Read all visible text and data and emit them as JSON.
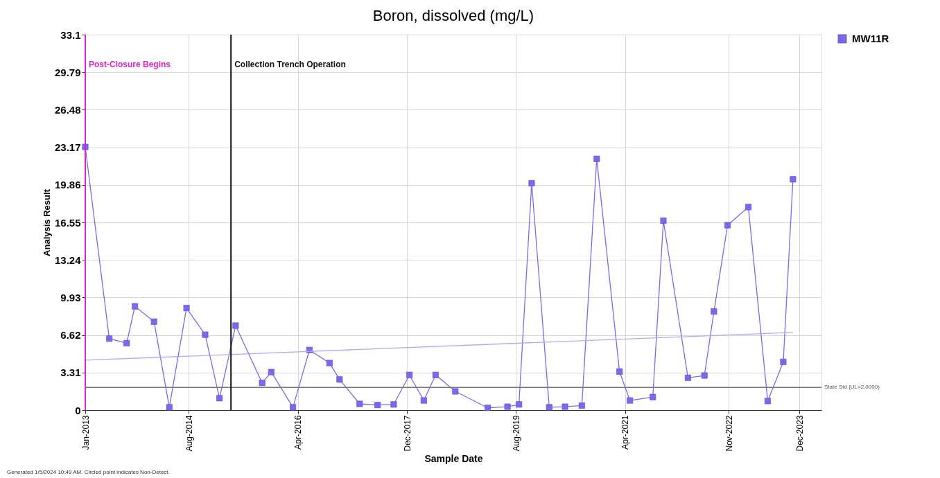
{
  "chart_data": {
    "type": "line",
    "title": "Boron, dissolved (mg/L)",
    "xlabel": "Sample Date",
    "ylabel": "Analysis Result",
    "series": [
      {
        "name": "MW11R",
        "color": "#7b68ee",
        "marker": "square",
        "x": [
          "2013-01-01",
          "2013-05-15",
          "2013-08-20",
          "2013-10-05",
          "2014-01-20",
          "2014-04-15",
          "2014-07-20",
          "2014-11-01",
          "2015-01-20",
          "2015-04-20",
          "2015-09-15",
          "2015-11-05",
          "2016-03-05",
          "2016-06-05",
          "2016-09-25",
          "2016-11-20",
          "2017-03-12",
          "2017-06-20",
          "2017-09-18",
          "2017-12-15",
          "2018-03-05",
          "2018-05-10",
          "2018-08-28",
          "2019-02-25",
          "2019-06-15",
          "2019-08-18",
          "2019-10-28",
          "2020-02-03",
          "2020-05-01",
          "2020-08-03",
          "2020-10-25",
          "2021-03-01",
          "2021-04-28",
          "2021-09-03",
          "2021-11-01",
          "2022-03-18",
          "2022-06-18",
          "2022-08-10",
          "2022-10-25",
          "2023-02-18",
          "2023-06-06",
          "2023-09-01",
          "2023-10-25"
        ],
        "values": [
          23.2,
          6.3,
          5.9,
          9.15,
          7.8,
          0.25,
          9.0,
          6.65,
          1.05,
          7.45,
          2.4,
          3.35,
          0.25,
          5.3,
          4.15,
          2.7,
          0.55,
          0.45,
          0.5,
          3.1,
          0.85,
          3.1,
          1.65,
          0.2,
          0.3,
          0.5,
          20.0,
          0.25,
          0.3,
          0.4,
          22.15,
          3.4,
          0.85,
          1.15,
          16.7,
          2.85,
          3.05,
          8.7,
          16.3,
          17.9,
          0.8,
          4.25,
          20.35
        ]
      },
      {
        "type": "line",
        "color": "#b3a8f5",
        "marker": "none",
        "x": [
          "2013-01-01",
          "2023-10-25"
        ],
        "values": [
          4.4,
          6.85
        ]
      }
    ],
    "xlim": [
      "2013-01-01",
      "2024-04-01"
    ],
    "xticks": [
      {
        "value": "2013-01-01",
        "label": "Jan-2013"
      },
      {
        "value": "2014-08-01",
        "label": "Aug-2014"
      },
      {
        "value": "2016-04-01",
        "label": "Apr-2016"
      },
      {
        "value": "2017-12-01",
        "label": "Dec-2017"
      },
      {
        "value": "2019-08-01",
        "label": "Aug-2019"
      },
      {
        "value": "2021-04-01",
        "label": "Apr-2021"
      },
      {
        "value": "2022-11-01",
        "label": "Nov-2022"
      },
      {
        "value": "2023-12-01",
        "label": "Dec-2023"
      }
    ],
    "ylim": [
      0,
      33.1
    ],
    "yticks": [
      0,
      3.31,
      6.62,
      9.93,
      13.24,
      16.55,
      19.86,
      23.17,
      26.48,
      29.79,
      33.1
    ],
    "ref_lines": [
      {
        "axis": "y",
        "value": 2.0,
        "label": "State Std (UL=2.0000)",
        "color": "#777777"
      },
      {
        "axis": "x",
        "value": "2013-01-01",
        "label": "Post-Closure Begins",
        "color": "#e020c8"
      },
      {
        "axis": "x",
        "value": "2015-03-25",
        "label": "Collection Trench Operation",
        "color": "#111111"
      }
    ],
    "annotations": [
      "Generated 1/5/2024 10:49 AM. Circled point indicates Non-Detect."
    ],
    "grid": true,
    "legend": "top right",
    "line_style": "solid"
  }
}
